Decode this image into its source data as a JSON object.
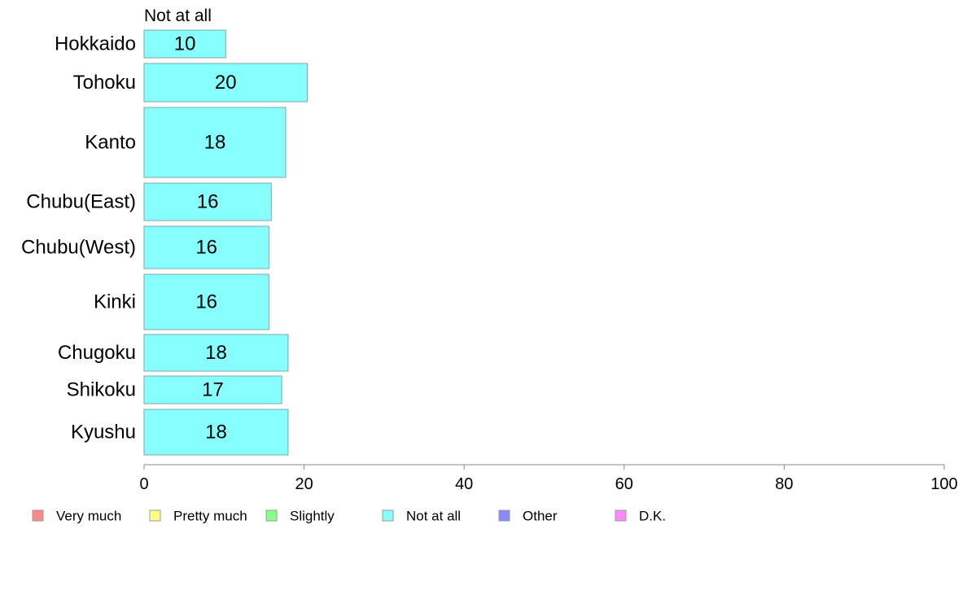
{
  "chart_data": {
    "type": "bar",
    "orientation": "horizontal",
    "series_title": "Not at all",
    "categories": [
      "Hokkaido",
      "Tohoku",
      "Kanto",
      "Chubu(East)",
      "Chubu(West)",
      "Kinki",
      "Chugoku",
      "Shikoku",
      "Kyushu"
    ],
    "values": [
      10.2,
      20.4,
      17.7,
      15.9,
      15.6,
      15.6,
      18.0,
      17.2,
      18.0
    ],
    "value_labels": [
      "10",
      "20",
      "18",
      "16",
      "16",
      "16",
      "18",
      "17",
      "18"
    ],
    "xlim": [
      0,
      100
    ],
    "xticks": [
      0,
      20,
      40,
      60,
      80,
      100
    ],
    "xtick_labels": [
      "0",
      "20",
      "40",
      "60",
      "80",
      "100"
    ],
    "grid": false,
    "bar_color": "#88ffff",
    "legend_position": "bottom",
    "legend": [
      {
        "label": "Very much",
        "color": "#ff8888"
      },
      {
        "label": "Pretty much",
        "color": "#ffff88"
      },
      {
        "label": "Slightly",
        "color": "#88ff88"
      },
      {
        "label": "Not at all",
        "color": "#88ffff"
      },
      {
        "label": "Other",
        "color": "#8888ff"
      },
      {
        "label": "D.K.",
        "color": "#ff88ff"
      }
    ]
  }
}
